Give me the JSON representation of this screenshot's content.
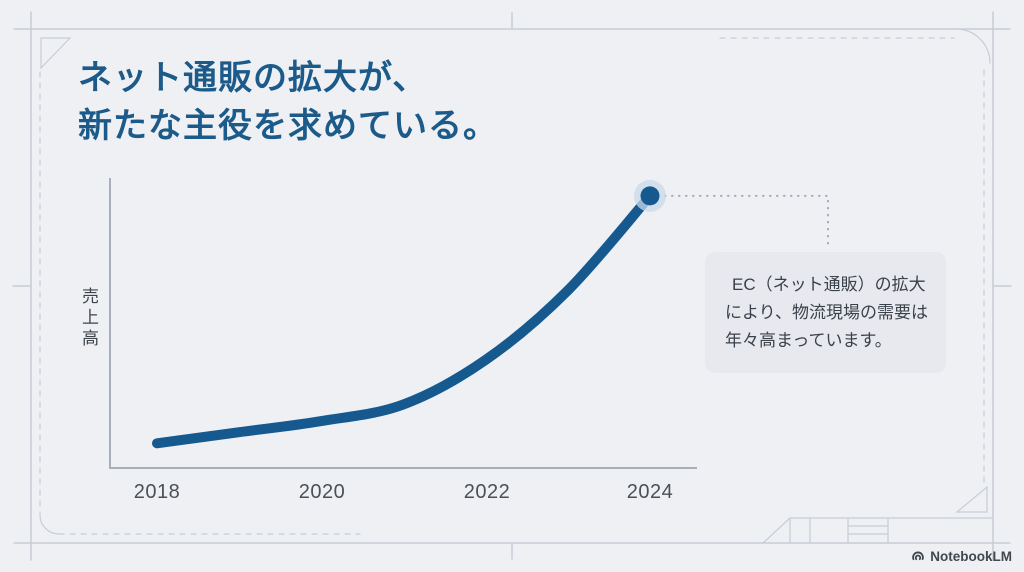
{
  "slide": {
    "title_lines": [
      "ネット通販の拡大が、",
      "新たな主役を求めている。"
    ],
    "footer_brand": "NotebookLM"
  },
  "chart": {
    "y_axis_label": "売上高",
    "x_ticks": [
      "2018",
      "2020",
      "2022",
      "2024"
    ]
  },
  "callout": {
    "lines": [
      "EC（ネット通販）の拡大",
      "により、物流現場の需要は",
      "年々高まっています。"
    ]
  },
  "colors": {
    "bg": "#eef0f4",
    "accent": "#15598f",
    "title": "#1c5a8a",
    "axis": "#a8afba",
    "frame": "#c7cdd7",
    "text": "#3b414a",
    "tick": "#4a5058",
    "calloutbg": "#e7e9ee",
    "halo": "#c9daea",
    "connector": "#a0a7b1",
    "footer": "#42484f"
  },
  "chart_data": {
    "type": "line",
    "title": "ネット通販の拡大が、新たな主役を求めている。",
    "x": [
      2018,
      2019,
      2020,
      2021,
      2022,
      2023,
      2024
    ],
    "series": [
      {
        "name": "売上高",
        "values": [
          6,
          10,
          14,
          20,
          36,
          61,
          95
        ]
      }
    ],
    "xlabel": "",
    "ylabel": "売上高",
    "x_tick_labels": [
      "2018",
      "2020",
      "2022",
      "2024"
    ],
    "ylim": [
      0,
      100
    ],
    "y_axis_numeric_labels": false,
    "grid": false,
    "legend": false,
    "end_marker": {
      "x": 2024,
      "style": "filled-circle-with-halo"
    },
    "annotations": [
      {
        "anchor_x": 2024,
        "connector": "dotted",
        "text": "EC（ネット通販）の拡大により、物流現場の需要は年々高まっています。"
      }
    ]
  }
}
